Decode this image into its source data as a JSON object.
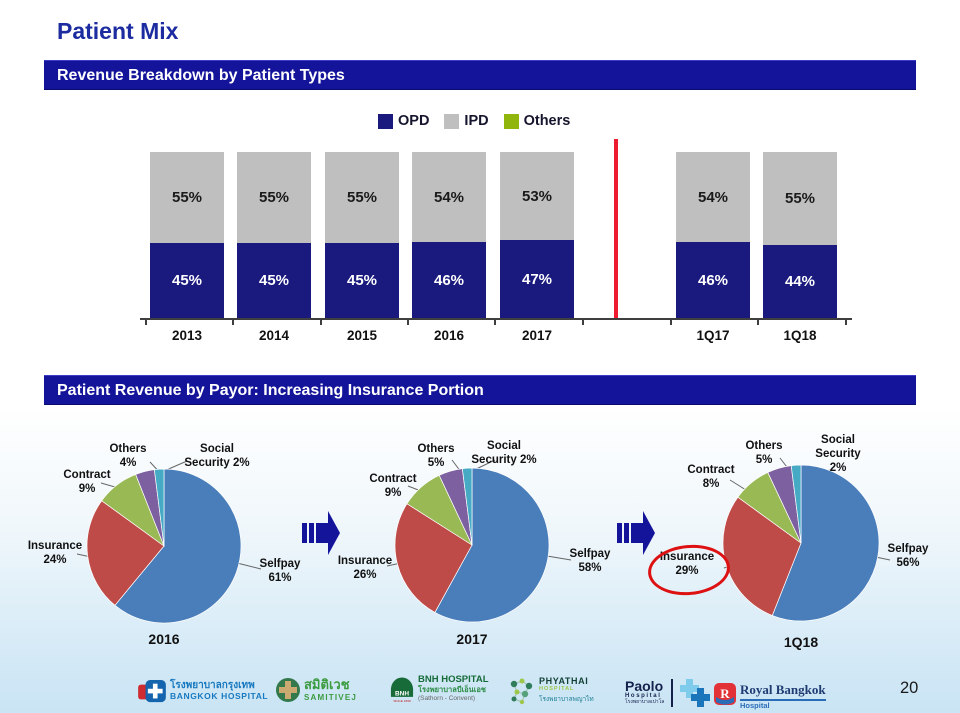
{
  "slide": {
    "title": "Patient Mix",
    "page_number": "20"
  },
  "sections": [
    {
      "header": "Revenue Breakdown by Patient Types"
    },
    {
      "header": "Patient Revenue by Payor: Increasing Insurance Portion"
    }
  ],
  "colors": {
    "header_navy": "#14149b",
    "bar_navy": "#1a1a7e",
    "bar_gray": "#bfbfbf",
    "legend_green": "#90b50d",
    "separator_red": "#ed1b2f",
    "annotation_red": "#dd1111",
    "pie_blue": "#4a7ebb",
    "pie_red": "#be4b48",
    "pie_green": "#98b954",
    "pie_purple": "#7d60a0",
    "pie_cyan": "#46aac5"
  },
  "chart_data": [
    {
      "type": "bar",
      "stacked": true,
      "title": "Revenue Breakdown by Patient Types",
      "categories": [
        "2013",
        "2014",
        "2015",
        "2016",
        "2017",
        "1Q17",
        "1Q18"
      ],
      "series": [
        {
          "name": "OPD",
          "color": "#1a1a7e",
          "values": [
            45,
            45,
            45,
            46,
            47,
            46,
            44
          ]
        },
        {
          "name": "IPD",
          "color": "#bfbfbf",
          "values": [
            55,
            55,
            55,
            54,
            53,
            54,
            55
          ]
        },
        {
          "name": "Others",
          "color": "#90b50d",
          "values": [
            0,
            0,
            0,
            0,
            0,
            0,
            0
          ]
        }
      ],
      "value_suffix": "%",
      "ylim": [
        0,
        100
      ],
      "separator_after": "2017",
      "legend_position": "top"
    },
    {
      "type": "pie",
      "title": "2016",
      "start_angle_deg": 0,
      "direction": "clockwise",
      "slices": [
        {
          "label": "Selfpay",
          "value": 61,
          "color": "#4a7ebb"
        },
        {
          "label": "Insurance",
          "value": 24,
          "color": "#be4b48"
        },
        {
          "label": "Contract",
          "value": 9,
          "color": "#98b954"
        },
        {
          "label": "Others",
          "value": 4,
          "color": "#7d60a0"
        },
        {
          "label": "Social Security",
          "value": 2,
          "color": "#46aac5"
        }
      ]
    },
    {
      "type": "pie",
      "title": "2017",
      "start_angle_deg": 0,
      "direction": "clockwise",
      "slices": [
        {
          "label": "Selfpay",
          "value": 58,
          "color": "#4a7ebb"
        },
        {
          "label": "Insurance",
          "value": 26,
          "color": "#be4b48"
        },
        {
          "label": "Contract",
          "value": 9,
          "color": "#98b954"
        },
        {
          "label": "Others",
          "value": 5,
          "color": "#7d60a0"
        },
        {
          "label": "Social Security",
          "value": 2,
          "color": "#46aac5"
        }
      ]
    },
    {
      "type": "pie",
      "title": "1Q18",
      "start_angle_deg": 0,
      "direction": "clockwise",
      "annotation": "Insurance 29% circled in red",
      "slices": [
        {
          "label": "Selfpay",
          "value": 56,
          "color": "#4a7ebb"
        },
        {
          "label": "Insurance",
          "value": 29,
          "color": "#be4b48"
        },
        {
          "label": "Contract",
          "value": 8,
          "color": "#98b954"
        },
        {
          "label": "Others",
          "value": 5,
          "color": "#7d60a0"
        },
        {
          "label": "Social Security",
          "value": 2,
          "color": "#46aac5"
        }
      ]
    }
  ],
  "pie_labels": [
    {
      "others": "Others\n4%",
      "social": "Social\nSecurity 2%",
      "contract": "Contract\n9%",
      "insurance": "Insurance\n24%",
      "selfpay": "Selfpay\n61%",
      "year": "2016"
    },
    {
      "others": "Others\n5%",
      "social": "Social\nSecurity 2%",
      "contract": "Contract\n9%",
      "insurance": "Insurance\n26%",
      "selfpay": "Selfpay\n58%",
      "year": "2017"
    },
    {
      "others": "Others\n5%",
      "social": "Social\nSecurity\n2%",
      "contract": "Contract\n8%",
      "insurance": "Insurance\n29%",
      "selfpay": "Selfpay\n56%",
      "year": "1Q18"
    }
  ],
  "logos": [
    {
      "name": "bangkok-hospital",
      "thai": "โรงพยาบาลกรุงเทพ",
      "en": "BANGKOK HOSPITAL"
    },
    {
      "name": "samitivej",
      "thai": "สมิติเวช",
      "en": "SAMITIVEJ"
    },
    {
      "name": "bnh-hospital",
      "en": "BNH HOSPITAL",
      "thai": "โรงพยาบาลบีเอ็นเอช",
      "sub": "(Sathorn - Convent)",
      "icon_text": "BNH",
      "icon_sub": "SINCE 1898"
    },
    {
      "name": "phyathai-hospital",
      "en": "PHYATHAI",
      "sub": "HOSPITAL",
      "thai": "โรงพยาบาลพญาไท"
    },
    {
      "name": "paolo-hospital",
      "en": "Paolo",
      "sub": "Hospital",
      "thai": "โรงพยาบาลเปาโล"
    },
    {
      "name": "royal-bangkok-hospital",
      "en": "Royal Bangkok",
      "sub": "Hospital"
    }
  ]
}
